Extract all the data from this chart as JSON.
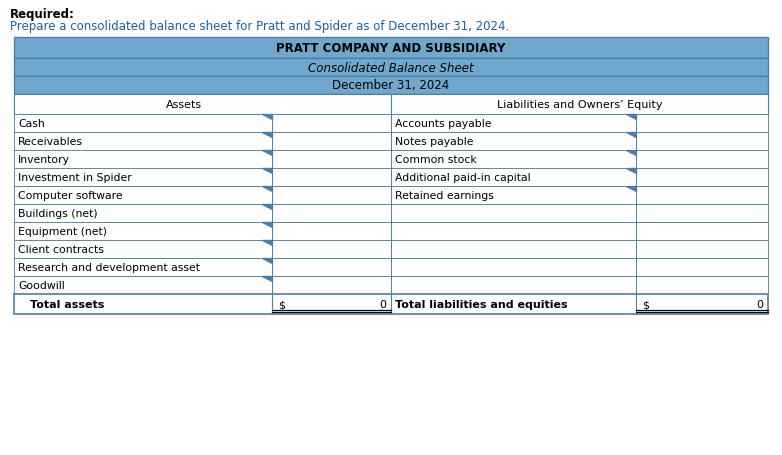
{
  "title1": "PRATT COMPANY AND SUBSIDIARY",
  "title2": "Consolidated Balance Sheet",
  "title3": "December 31, 2024",
  "header_bg": "#6fa8cc",
  "border_color": "#4a7faa",
  "row_bg": "#ffffff",
  "text_color_blue": "#1a5fa8",
  "required_label": "Required:",
  "required_text": "Prepare a consolidated balance sheet for Pratt and Spider as of December 31, 2024.",
  "col_header_left": "Assets",
  "col_header_right": "Liabilities and Owners’ Equity",
  "assets": [
    "Cash",
    "Receivables",
    "Inventory",
    "Investment in Spider",
    "Computer software",
    "Buildings (net)",
    "Equipment (net)",
    "Client contracts",
    "Research and development asset",
    "Goodwill"
  ],
  "liabilities": [
    "Accounts payable",
    "Notes payable",
    "Common stock",
    "Additional paid-in capital",
    "Retained earnings",
    "",
    "",
    "",
    "",
    ""
  ],
  "total_assets_label": "Total assets",
  "total_liabilities_label": "Total liabilities and equities",
  "dollar_sign": "$",
  "total_value": "0",
  "fig_width": 7.82,
  "fig_height": 4.56,
  "dpi": 100
}
